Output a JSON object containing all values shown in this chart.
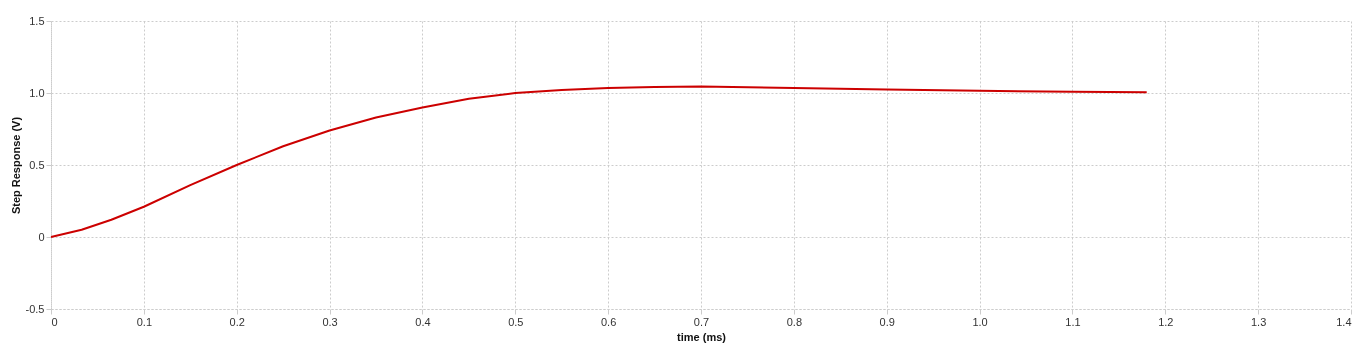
{
  "chart_data": {
    "type": "line",
    "xlabel": "time (ms)",
    "ylabel": "Step Response (V)",
    "x": [
      0,
      0.033,
      0.065,
      0.1,
      0.15,
      0.2,
      0.25,
      0.3,
      0.35,
      0.4,
      0.45,
      0.5,
      0.55,
      0.6,
      0.65,
      0.7,
      0.8,
      0.9,
      1.0,
      1.1,
      1.18
    ],
    "series": [
      {
        "color": "#cc0000",
        "values": [
          0,
          0.05,
          0.12,
          0.21,
          0.36,
          0.5,
          0.63,
          0.74,
          0.83,
          0.9,
          0.96,
          1.0,
          1.02,
          1.035,
          1.042,
          1.045,
          1.035,
          1.025,
          1.015,
          1.008,
          1.005
        ]
      }
    ],
    "xlim": [
      0,
      1.4
    ],
    "ylim": [
      -0.5,
      1.5
    ],
    "xticks": [
      0,
      0.1,
      0.2,
      0.3,
      0.4,
      0.5,
      0.6,
      0.7,
      0.8,
      0.9,
      {
        "value": 1,
        "label": "1.0"
      },
      1.1,
      1.2,
      1.3,
      1.4
    ],
    "yticks": [
      -0.5,
      0,
      0.5,
      {
        "value": 1,
        "label": "1.0"
      },
      1.5
    ],
    "grid": true,
    "line_style": "solid",
    "marker": "none"
  }
}
